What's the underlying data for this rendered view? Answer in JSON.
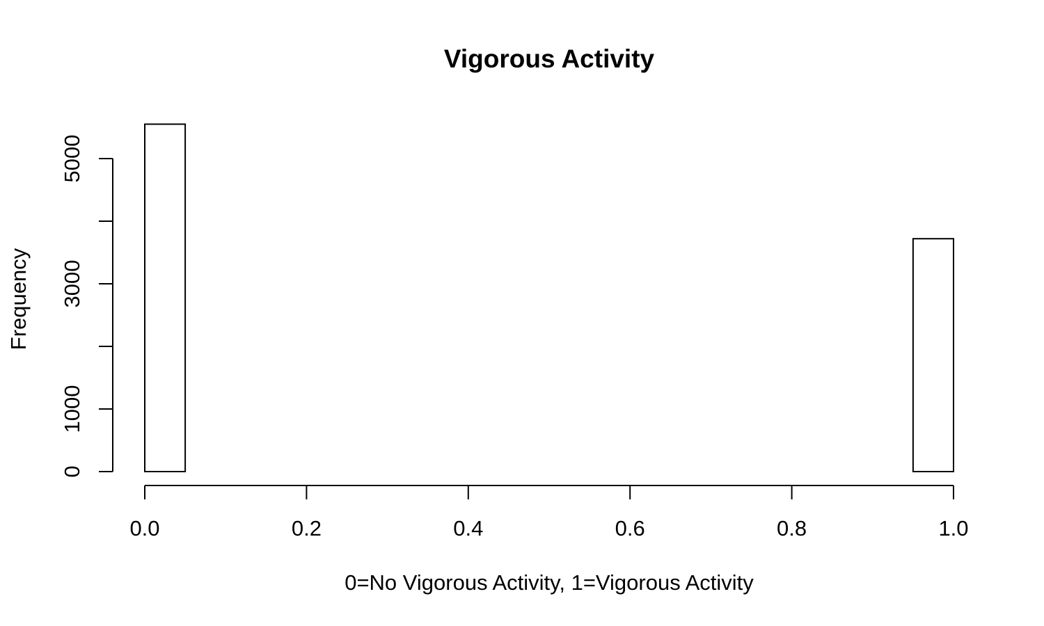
{
  "chart_data": {
    "type": "bar",
    "title": "Vigorous Activity",
    "xlabel": "0=No Vigorous Activity, 1=Vigorous Activity",
    "ylabel": "Frequency",
    "bins": [
      {
        "x0": 0.0,
        "x1": 0.05,
        "count": 5550
      },
      {
        "x0": 0.05,
        "x1": 0.1,
        "count": 0
      },
      {
        "x0": 0.1,
        "x1": 0.15,
        "count": 0
      },
      {
        "x0": 0.15,
        "x1": 0.2,
        "count": 0
      },
      {
        "x0": 0.2,
        "x1": 0.25,
        "count": 0
      },
      {
        "x0": 0.25,
        "x1": 0.3,
        "count": 0
      },
      {
        "x0": 0.3,
        "x1": 0.35,
        "count": 0
      },
      {
        "x0": 0.35,
        "x1": 0.4,
        "count": 0
      },
      {
        "x0": 0.4,
        "x1": 0.45,
        "count": 0
      },
      {
        "x0": 0.45,
        "x1": 0.5,
        "count": 0
      },
      {
        "x0": 0.5,
        "x1": 0.55,
        "count": 0
      },
      {
        "x0": 0.55,
        "x1": 0.6,
        "count": 0
      },
      {
        "x0": 0.6,
        "x1": 0.65,
        "count": 0
      },
      {
        "x0": 0.65,
        "x1": 0.7,
        "count": 0
      },
      {
        "x0": 0.7,
        "x1": 0.75,
        "count": 0
      },
      {
        "x0": 0.75,
        "x1": 0.8,
        "count": 0
      },
      {
        "x0": 0.8,
        "x1": 0.85,
        "count": 0
      },
      {
        "x0": 0.85,
        "x1": 0.9,
        "count": 0
      },
      {
        "x0": 0.9,
        "x1": 0.95,
        "count": 0
      },
      {
        "x0": 0.95,
        "x1": 1.0,
        "count": 3720
      }
    ],
    "xlim": [
      0.0,
      1.0
    ],
    "ylim": [
      0,
      5550
    ],
    "x_ticks": [
      0.0,
      0.2,
      0.4,
      0.6,
      0.8,
      1.0
    ],
    "x_tick_labels": [
      "0.0",
      "0.2",
      "0.4",
      "0.6",
      "0.8",
      "1.0"
    ],
    "y_ticks": [
      0,
      1000,
      2000,
      3000,
      4000,
      5000
    ],
    "y_tick_labels": [
      "0",
      "1000",
      "",
      "3000",
      "",
      "5000"
    ],
    "grid": false,
    "bar_fill": "#ffffff",
    "bar_stroke": "#000000"
  }
}
